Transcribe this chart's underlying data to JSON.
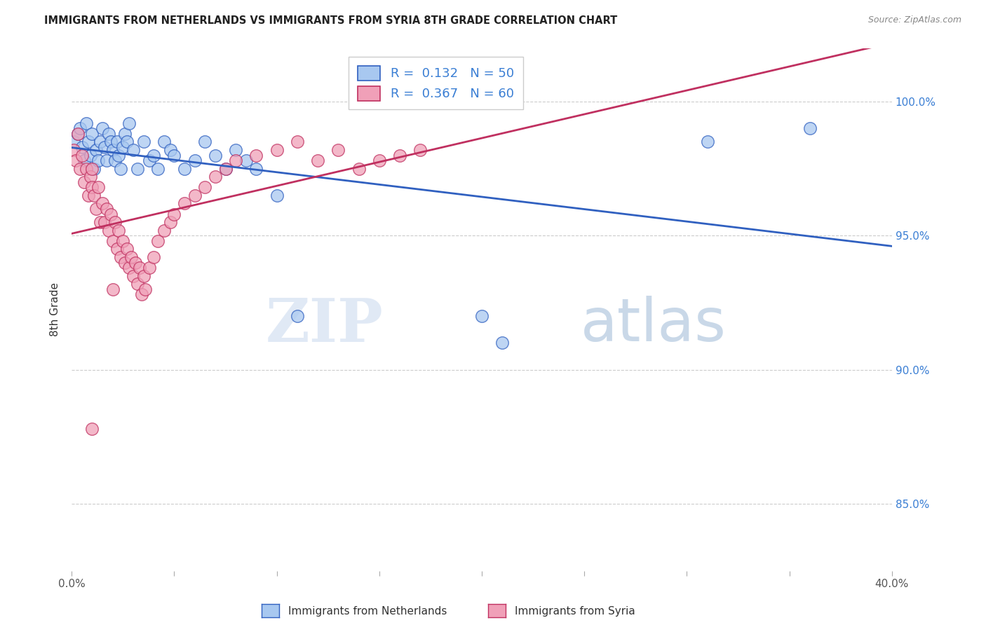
{
  "title": "IMMIGRANTS FROM NETHERLANDS VS IMMIGRANTS FROM SYRIA 8TH GRADE CORRELATION CHART",
  "source": "Source: ZipAtlas.com",
  "ylabel": "8th Grade",
  "ylabel_ticks": [
    "85.0%",
    "90.0%",
    "95.0%",
    "100.0%"
  ],
  "ylabel_values": [
    0.85,
    0.9,
    0.95,
    1.0
  ],
  "xlim": [
    0.0,
    0.4
  ],
  "ylim": [
    0.825,
    1.02
  ],
  "color_netherlands": "#A8C8F0",
  "color_syria": "#F0A0B8",
  "trendline_netherlands": "#3060C0",
  "trendline_syria": "#C03060",
  "watermark_zip": "ZIP",
  "watermark_atlas": "atlas",
  "nl_x": [
    0.001,
    0.003,
    0.004,
    0.005,
    0.006,
    0.007,
    0.008,
    0.009,
    0.01,
    0.011,
    0.012,
    0.013,
    0.014,
    0.015,
    0.016,
    0.017,
    0.018,
    0.019,
    0.02,
    0.021,
    0.022,
    0.023,
    0.024,
    0.025,
    0.026,
    0.027,
    0.028,
    0.03,
    0.032,
    0.035,
    0.038,
    0.04,
    0.042,
    0.045,
    0.048,
    0.05,
    0.055,
    0.06,
    0.065,
    0.07,
    0.075,
    0.08,
    0.085,
    0.09,
    0.1,
    0.11,
    0.2,
    0.21,
    0.31,
    0.36
  ],
  "nl_y": [
    0.985,
    0.988,
    0.99,
    0.983,
    0.978,
    0.992,
    0.985,
    0.98,
    0.988,
    0.975,
    0.982,
    0.978,
    0.985,
    0.99,
    0.983,
    0.978,
    0.988,
    0.985,
    0.982,
    0.978,
    0.985,
    0.98,
    0.975,
    0.983,
    0.988,
    0.985,
    0.992,
    0.982,
    0.975,
    0.985,
    0.978,
    0.98,
    0.975,
    0.985,
    0.982,
    0.98,
    0.975,
    0.978,
    0.985,
    0.98,
    0.975,
    0.982,
    0.978,
    0.975,
    0.965,
    0.92,
    0.92,
    0.91,
    0.985,
    0.99
  ],
  "sy_x": [
    0.001,
    0.002,
    0.003,
    0.004,
    0.005,
    0.006,
    0.007,
    0.008,
    0.009,
    0.01,
    0.01,
    0.011,
    0.012,
    0.013,
    0.014,
    0.015,
    0.016,
    0.017,
    0.018,
    0.019,
    0.02,
    0.021,
    0.022,
    0.023,
    0.024,
    0.025,
    0.026,
    0.027,
    0.028,
    0.029,
    0.03,
    0.031,
    0.032,
    0.033,
    0.034,
    0.035,
    0.036,
    0.038,
    0.04,
    0.042,
    0.045,
    0.048,
    0.05,
    0.055,
    0.06,
    0.065,
    0.07,
    0.075,
    0.08,
    0.09,
    0.1,
    0.11,
    0.12,
    0.13,
    0.14,
    0.15,
    0.16,
    0.17,
    0.02,
    0.01
  ],
  "sy_y": [
    0.982,
    0.978,
    0.988,
    0.975,
    0.98,
    0.97,
    0.975,
    0.965,
    0.972,
    0.968,
    0.975,
    0.965,
    0.96,
    0.968,
    0.955,
    0.962,
    0.955,
    0.96,
    0.952,
    0.958,
    0.948,
    0.955,
    0.945,
    0.952,
    0.942,
    0.948,
    0.94,
    0.945,
    0.938,
    0.942,
    0.935,
    0.94,
    0.932,
    0.938,
    0.928,
    0.935,
    0.93,
    0.938,
    0.942,
    0.948,
    0.952,
    0.955,
    0.958,
    0.962,
    0.965,
    0.968,
    0.972,
    0.975,
    0.978,
    0.98,
    0.982,
    0.985,
    0.978,
    0.982,
    0.975,
    0.978,
    0.98,
    0.982,
    0.93,
    0.878
  ]
}
